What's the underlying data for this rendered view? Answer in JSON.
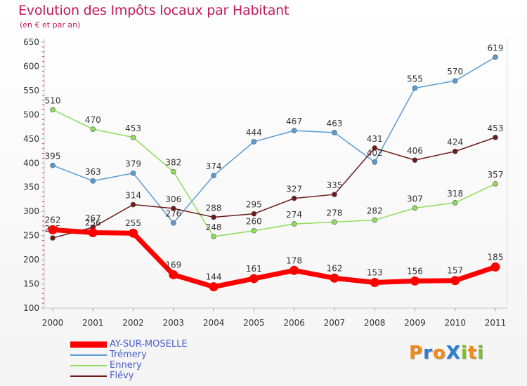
{
  "header": {
    "title": "Evolution des Impôts locaux par Habitant",
    "subtitle": "(en € et par an)"
  },
  "logo": {
    "text": "ProXiti",
    "letters": [
      {
        "ch": "P",
        "color": "#f28a1b"
      },
      {
        "ch": "r",
        "color": "#2e7fd2"
      },
      {
        "ch": "o",
        "color": "#f28a1b"
      },
      {
        "ch": "X",
        "color": "#2e7fd2"
      },
      {
        "ch": "i",
        "color": "#7cbf2a"
      },
      {
        "ch": "t",
        "color": "#f28a1b"
      },
      {
        "ch": "i",
        "color": "#7cbf2a"
      }
    ]
  },
  "chart_data": {
    "type": "line",
    "title": "Evolution des Impôts locaux par Habitant",
    "subtitle": "(en € et par an)",
    "xlabel": "",
    "ylabel": "",
    "ylim": [
      100,
      650
    ],
    "yticks": [
      100,
      150,
      200,
      250,
      300,
      350,
      400,
      450,
      500,
      550,
      600,
      650
    ],
    "categories": [
      "2000",
      "2001",
      "2002",
      "2003",
      "2004",
      "2005",
      "2006",
      "2007",
      "2008",
      "2009",
      "2010",
      "2011"
    ],
    "grid": false,
    "legend_position": "bottom-left",
    "series": [
      {
        "name": "Trémery",
        "color": "#5b9bd5",
        "values": [
          395,
          363,
          379,
          276,
          374,
          444,
          467,
          463,
          402,
          555,
          570,
          619
        ]
      },
      {
        "name": "Ennery",
        "color": "#8fdc5a",
        "values": [
          510,
          470,
          453,
          382,
          248,
          260,
          274,
          278,
          282,
          307,
          318,
          357
        ]
      },
      {
        "name": "Flévy",
        "color": "#6d1a1a",
        "values": [
          245,
          267,
          314,
          306,
          288,
          295,
          327,
          335,
          431,
          406,
          424,
          453
        ]
      },
      {
        "name": "AY-SUR-MOSELLE",
        "color": "#ff0000",
        "values": [
          262,
          256,
          255,
          169,
          144,
          161,
          178,
          162,
          153,
          156,
          157,
          185
        ]
      }
    ]
  }
}
